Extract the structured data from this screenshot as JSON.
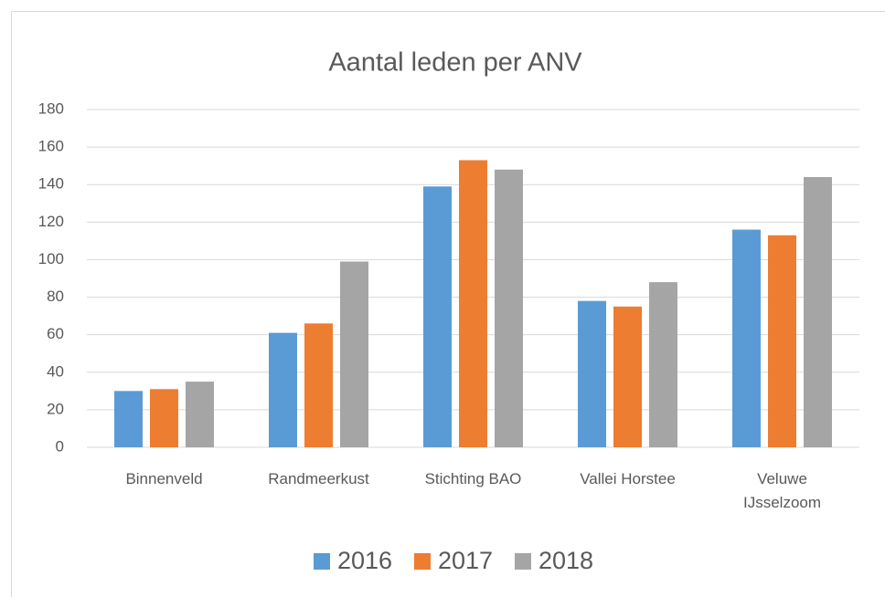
{
  "chart_data": {
    "type": "bar",
    "title": "Aantal leden per ANV",
    "categories": [
      "Binnenveld",
      "Randmeerkust",
      "Stichting BAO",
      "Vallei Horstee",
      "Veluwe IJsselzoom"
    ],
    "series": [
      {
        "name": "2016",
        "color": "#5b9bd5",
        "values": [
          30,
          61,
          139,
          78,
          116
        ]
      },
      {
        "name": "2017",
        "color": "#ed7d31",
        "values": [
          31,
          66,
          153,
          75,
          113
        ]
      },
      {
        "name": "2018",
        "color": "#a5a5a5",
        "values": [
          35,
          99,
          148,
          88,
          144
        ]
      }
    ],
    "ylim": [
      0,
      180
    ],
    "yticks": [
      0,
      20,
      40,
      60,
      80,
      100,
      120,
      140,
      160,
      180
    ],
    "grid": true,
    "legend": "bottom"
  }
}
